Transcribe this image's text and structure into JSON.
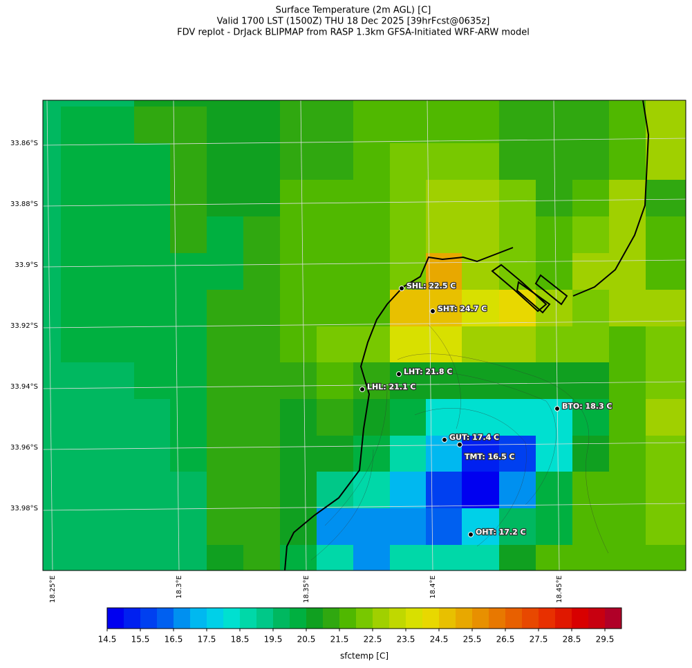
{
  "header": {
    "lines": [
      "Surface Temperature (2m AGL) [C]",
      "Valid 1700 LST (1500Z) THU 18 Dec 2025 [39hrFcst@0635z]",
      "FDV replot - DrJack BLIPMAP from RASP 1.3km GFSA-Initiated WRF-ARW model"
    ]
  },
  "map": {
    "lat_labels": [
      "33.86°S",
      "33.88°S",
      "33.9°S",
      "33.92°S",
      "33.94°S",
      "33.96°S",
      "33.98°S"
    ],
    "lon_labels": [
      "18.25°E",
      "18.3°E",
      "18.35°E",
      "18.4°E",
      "18.45°E"
    ],
    "stations": [
      "SHL: 22.5 C",
      "SHT: 24.7 C",
      "LHT: 21.8 C",
      "LHL: 21.1 C",
      "BTO: 18.3 C",
      "GUT: 17.4 C",
      "TMT: 16.5 C",
      "OHT: 17.2 C"
    ],
    "cells": [
      [
        19.7,
        19.7,
        19.7,
        20.7,
        20.7,
        20.7,
        20.7,
        21.2,
        21.2,
        21.7,
        21.7,
        21.7,
        21.7,
        21.2,
        21.2,
        21.2,
        21.7,
        22.7
      ],
      [
        19.7,
        20.2,
        20.2,
        21.2,
        21.2,
        20.7,
        20.7,
        21.2,
        21.2,
        21.7,
        21.7,
        21.7,
        21.7,
        21.2,
        21.2,
        21.2,
        21.7,
        22.7
      ],
      [
        19.7,
        20.2,
        20.2,
        20.2,
        21.2,
        20.7,
        20.7,
        21.2,
        21.2,
        21.7,
        22.2,
        22.2,
        22.2,
        21.2,
        21.2,
        21.2,
        21.7,
        22.7
      ],
      [
        19.7,
        20.2,
        20.2,
        20.2,
        21.2,
        20.7,
        20.7,
        21.7,
        21.7,
        21.7,
        22.2,
        22.7,
        22.7,
        22.2,
        21.2,
        21.7,
        22.7,
        21.0
      ],
      [
        19.7,
        20.2,
        20.2,
        20.2,
        21.2,
        20.2,
        21.2,
        21.7,
        21.7,
        21.7,
        22.2,
        22.7,
        22.7,
        22.2,
        21.7,
        22.2,
        22.7,
        21.7
      ],
      [
        19.7,
        20.2,
        20.2,
        20.2,
        20.2,
        20.2,
        21.2,
        21.7,
        21.7,
        21.7,
        22.2,
        25.2,
        22.7,
        22.2,
        21.7,
        22.7,
        22.7,
        21.7
      ],
      [
        19.7,
        20.2,
        20.2,
        20.2,
        20.2,
        21.2,
        21.2,
        21.7,
        21.7,
        21.7,
        24.7,
        24.7,
        23.8,
        24.2,
        22.7,
        22.2,
        22.7,
        22.7
      ],
      [
        19.7,
        20.2,
        20.2,
        20.2,
        20.2,
        21.2,
        21.2,
        21.7,
        22.2,
        22.2,
        23.7,
        23.7,
        22.7,
        22.7,
        22.2,
        22.2,
        21.7,
        22.2
      ],
      [
        19.7,
        19.7,
        19.7,
        20.2,
        20.2,
        21.2,
        21.2,
        21.2,
        21.7,
        21.2,
        20.7,
        20.7,
        20.6,
        20.7,
        20.7,
        20.7,
        21.7,
        22.2
      ],
      [
        19.7,
        19.7,
        19.7,
        19.7,
        20.2,
        21.2,
        21.2,
        20.7,
        21.2,
        20.7,
        20.2,
        18.2,
        18.2,
        18.2,
        18.2,
        20.2,
        21.7,
        22.7
      ],
      [
        19.7,
        19.7,
        19.7,
        19.7,
        20.2,
        21.2,
        21.2,
        20.7,
        20.7,
        20.2,
        18.7,
        17.2,
        15.2,
        15.7,
        18.2,
        20.7,
        21.7,
        22.2
      ],
      [
        19.7,
        19.7,
        19.7,
        19.7,
        19.7,
        21.2,
        21.2,
        20.7,
        19.2,
        18.7,
        17.2,
        15.7,
        14.7,
        16.7,
        20.2,
        21.7,
        21.7,
        22.2
      ],
      [
        19.7,
        19.7,
        19.7,
        19.7,
        19.7,
        21.2,
        21.2,
        20.7,
        16.7,
        16.7,
        16.7,
        16.2,
        17.7,
        19.7,
        20.2,
        21.7,
        21.7,
        22.2
      ],
      [
        19.7,
        19.7,
        19.7,
        19.7,
        19.7,
        20.7,
        21.2,
        20.2,
        18.7,
        16.7,
        18.7,
        18.7,
        18.7,
        20.7,
        21.7,
        21.7,
        21.7,
        21.7
      ]
    ]
  },
  "colorbar": {
    "label": "sfctemp [C]",
    "range": [
      14.5,
      30
    ],
    "ticks": [
      14.5,
      15.5,
      16.5,
      17.5,
      18.5,
      19.5,
      20.5,
      21.5,
      22.5,
      23.5,
      24.5,
      25.5,
      26.5,
      27.5,
      28.5,
      29.5
    ],
    "colors": [
      "#0000f0",
      "#0020f0",
      "#0040f0",
      "#0060f0",
      "#0090f0",
      "#00b8f0",
      "#00d0e8",
      "#00e0d0",
      "#00d8a8",
      "#00c888",
      "#00b860",
      "#00b040",
      "#10a020",
      "#30a810",
      "#50b800",
      "#78c800",
      "#a0d000",
      "#c0d800",
      "#d8e000",
      "#e8d800",
      "#e8c000",
      "#e8a800",
      "#e89000",
      "#e87800",
      "#e86000",
      "#e84800",
      "#e83000",
      "#e01800",
      "#d80000",
      "#c80010",
      "#b00028"
    ]
  }
}
